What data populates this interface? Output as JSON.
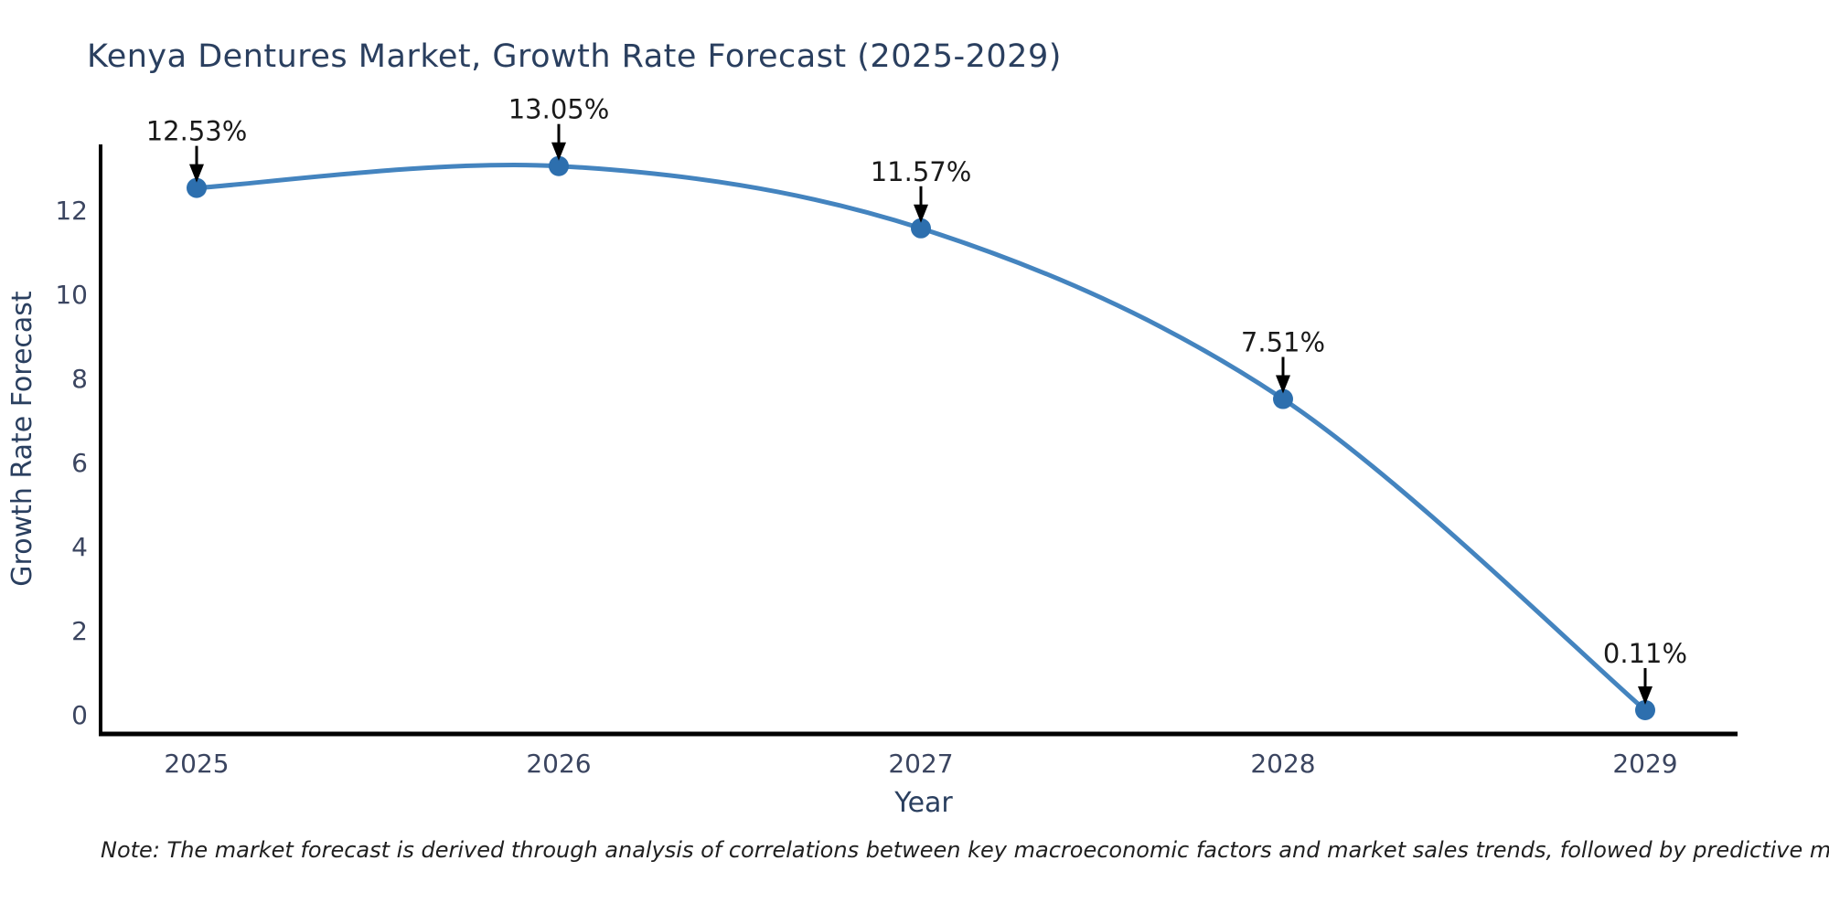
{
  "page": {
    "background_color": "#ffffff"
  },
  "chart_data": {
    "type": "line",
    "title": "Kenya Dentures Market, Growth Rate Forecast (2025-2029)",
    "xlabel": "Year",
    "ylabel": "Growth Rate Forecast",
    "categories": [
      "2025",
      "2026",
      "2027",
      "2028",
      "2029"
    ],
    "series": [
      {
        "name": "Growth Rate Forecast",
        "values": [
          12.53,
          13.05,
          11.57,
          7.51,
          0.11
        ],
        "point_labels": [
          "12.53%",
          "13.05%",
          "11.57%",
          "7.51%",
          "0.11%"
        ]
      }
    ],
    "yticks": [
      0,
      2,
      4,
      6,
      8,
      10,
      12
    ],
    "ylim": [
      0,
      14
    ],
    "grid": false,
    "legend_position": "none",
    "annotation_style": "value label above each point with black arrow pointing down to marker",
    "colors": {
      "line": "#4484bf",
      "marker": "#2d6fae",
      "axis_line": "#000000",
      "tick_label": "#3b4560",
      "axis_title": "#2a3f5f",
      "title": "#2a3f5f",
      "annotation_text": "#1a1a1a",
      "arrow": "#000000"
    }
  },
  "footnote": {
    "text": "Note: The market forecast is derived through analysis of correlations between key macroeconomic factors and market sales trends, followed by predictive modeling to project future sales"
  }
}
